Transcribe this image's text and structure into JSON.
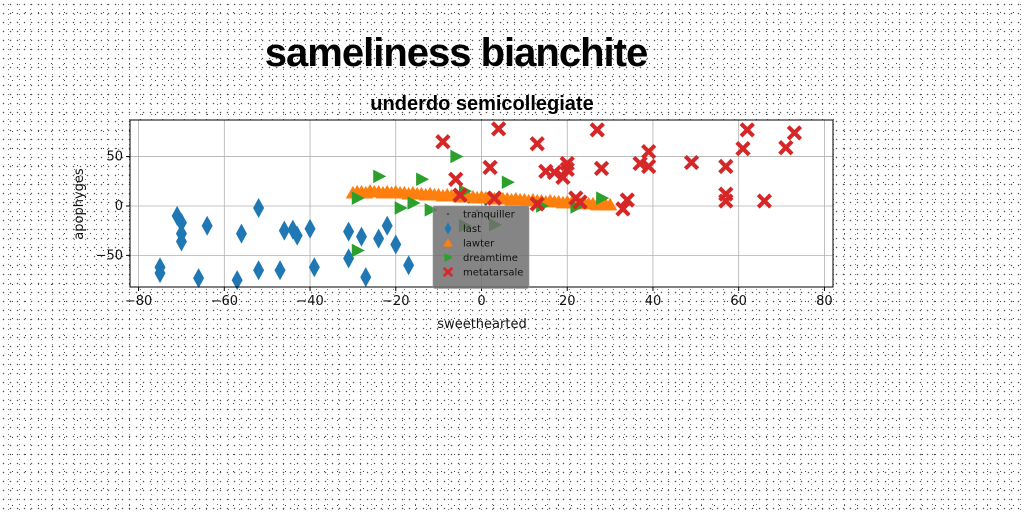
{
  "figure": {
    "suptitle": "sameliness bianchite"
  },
  "chart_data": {
    "type": "scatter",
    "title": "underdo semicollegiate",
    "xlabel": "sweethearted",
    "ylabel": "apophyges",
    "xlim": [
      -82,
      82
    ],
    "ylim": [
      -82,
      87
    ],
    "xticks": [
      -80,
      -60,
      -40,
      -20,
      0,
      20,
      40,
      60,
      80
    ],
    "yticks": [
      -50,
      0,
      50
    ],
    "grid": true,
    "legend": {
      "placement": "lower-center"
    },
    "series": [
      {
        "name": "tranquiller",
        "marker": "point",
        "color": "#555555",
        "points": [
          [
            -3,
            4
          ],
          [
            1,
            2
          ],
          [
            -1,
            -5
          ],
          [
            2,
            -9
          ]
        ]
      },
      {
        "name": "last",
        "marker": "thin_diamond",
        "color": "#1f77b4",
        "points": [
          [
            -75,
            -62
          ],
          [
            -75,
            -68
          ],
          [
            -71,
            -10
          ],
          [
            -70,
            -17
          ],
          [
            -70,
            -28
          ],
          [
            -70,
            -36
          ],
          [
            -66,
            -73
          ],
          [
            -64,
            -20
          ],
          [
            -57,
            -75
          ],
          [
            -56,
            -28
          ],
          [
            -52,
            -2
          ],
          [
            -52,
            -65
          ],
          [
            -47,
            -65
          ],
          [
            -46,
            -25
          ],
          [
            -44,
            -24
          ],
          [
            -43,
            -30
          ],
          [
            -40,
            -23
          ],
          [
            -39,
            -62
          ],
          [
            -31,
            -26
          ],
          [
            -31,
            -53
          ],
          [
            -28,
            -31
          ],
          [
            -27,
            -72
          ],
          [
            -24,
            -33
          ],
          [
            -22,
            -20
          ],
          [
            -20,
            -39
          ],
          [
            -17,
            -60
          ]
        ]
      },
      {
        "name": "lawter",
        "marker": "triangle_up",
        "color": "#ff7f0e",
        "points": [
          [
            -30,
            13
          ],
          [
            -29,
            14
          ],
          [
            -28,
            14
          ],
          [
            -27,
            13
          ],
          [
            -26,
            15
          ],
          [
            -25,
            14
          ],
          [
            -24,
            14
          ],
          [
            -23,
            13
          ],
          [
            -22,
            14
          ],
          [
            -21,
            13
          ],
          [
            -20,
            14
          ],
          [
            -19,
            13
          ],
          [
            -18,
            13
          ],
          [
            -17,
            12
          ],
          [
            -16,
            13
          ],
          [
            -15,
            12
          ],
          [
            -14,
            12
          ],
          [
            -13,
            11
          ],
          [
            -12,
            12
          ],
          [
            -11,
            11
          ],
          [
            -10,
            11
          ],
          [
            -9,
            10
          ],
          [
            -8,
            11
          ],
          [
            -7,
            10
          ],
          [
            -6,
            10
          ],
          [
            -5,
            9
          ],
          [
            -4,
            10
          ],
          [
            -3,
            9
          ],
          [
            -2,
            9
          ],
          [
            -1,
            8
          ],
          [
            0,
            9
          ],
          [
            1,
            8
          ],
          [
            2,
            8
          ],
          [
            3,
            7
          ],
          [
            4,
            8
          ],
          [
            5,
            7
          ],
          [
            6,
            7
          ],
          [
            7,
            6
          ],
          [
            8,
            7
          ],
          [
            9,
            6
          ],
          [
            10,
            6
          ],
          [
            11,
            5
          ],
          [
            12,
            6
          ],
          [
            13,
            5
          ],
          [
            14,
            5
          ],
          [
            15,
            4
          ],
          [
            16,
            5
          ],
          [
            17,
            4
          ],
          [
            18,
            4
          ],
          [
            19,
            3
          ],
          [
            20,
            4
          ],
          [
            21,
            3
          ],
          [
            22,
            3
          ],
          [
            23,
            2
          ],
          [
            24,
            3
          ],
          [
            25,
            2
          ],
          [
            26,
            2
          ],
          [
            27,
            1
          ],
          [
            28,
            2
          ],
          [
            29,
            1
          ],
          [
            30,
            1
          ]
        ]
      },
      {
        "name": "dreamtime",
        "marker": "triangle_right",
        "color": "#2ca02c",
        "points": [
          [
            -29,
            8
          ],
          [
            -29,
            -45
          ],
          [
            -24,
            30
          ],
          [
            -19,
            -2
          ],
          [
            -16,
            3
          ],
          [
            -14,
            27
          ],
          [
            -12,
            -4
          ],
          [
            -6,
            50
          ],
          [
            -4,
            15
          ],
          [
            -4,
            -20
          ],
          [
            3,
            -19
          ],
          [
            6,
            24
          ],
          [
            14,
            0
          ],
          [
            22,
            -1
          ],
          [
            28,
            8
          ]
        ]
      },
      {
        "name": "metatarsale",
        "marker": "X",
        "color": "#d62728",
        "points": [
          [
            -9,
            65
          ],
          [
            -6,
            27
          ],
          [
            -5,
            11
          ],
          [
            2,
            39
          ],
          [
            3,
            8
          ],
          [
            4,
            78
          ],
          [
            13,
            2
          ],
          [
            13,
            63
          ],
          [
            15,
            35
          ],
          [
            17,
            34
          ],
          [
            19,
            29
          ],
          [
            20,
            37
          ],
          [
            20,
            43
          ],
          [
            22,
            8
          ],
          [
            23,
            4
          ],
          [
            27,
            77
          ],
          [
            28,
            38
          ],
          [
            33,
            -3
          ],
          [
            34,
            6
          ],
          [
            37,
            43
          ],
          [
            39,
            40
          ],
          [
            39,
            55
          ],
          [
            49,
            44
          ],
          [
            57,
            40
          ],
          [
            57,
            12
          ],
          [
            57,
            5
          ],
          [
            61,
            58
          ],
          [
            62,
            77
          ],
          [
            66,
            5
          ],
          [
            71,
            59
          ],
          [
            73,
            74
          ]
        ]
      }
    ]
  }
}
